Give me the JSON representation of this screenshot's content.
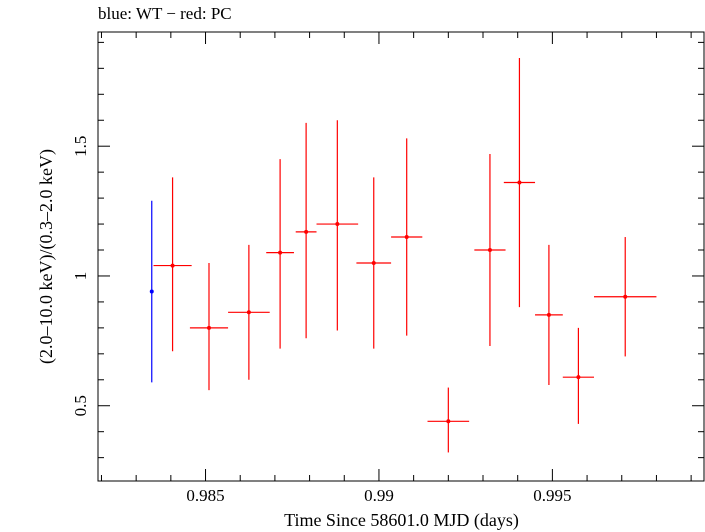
{
  "chart_data": {
    "type": "scatter",
    "title": "blue: WT − red: PC",
    "xlabel": "Time Since 58601.0 MJD (days)",
    "ylabel": "(2.0–10.0 keV)/(0.3–2.0 keV)",
    "xlim": [
      0.9819,
      0.9994
    ],
    "ylim": [
      0.21,
      1.94
    ],
    "xticks": [
      0.985,
      0.99,
      0.995
    ],
    "xtick_labels": [
      "0.985",
      "0.99",
      "0.995"
    ],
    "yticks": [
      0.5,
      1,
      1.5
    ],
    "ytick_labels": [
      "0.5",
      "1",
      "1.5"
    ],
    "grid": false,
    "series": [
      {
        "color": "#0000ff",
        "points": [
          {
            "x": 0.98345,
            "xerr": 0.0,
            "y": 0.94,
            "ylo": 0.59,
            "yhi": 1.29
          }
        ]
      },
      {
        "color": "#ff0000",
        "points": [
          {
            "x": 0.98405,
            "xerr": 0.00055,
            "y": 1.04,
            "ylo": 0.71,
            "yhi": 1.38
          },
          {
            "x": 0.9851,
            "xerr": 0.00055,
            "y": 0.8,
            "ylo": 0.56,
            "yhi": 1.05
          },
          {
            "x": 0.98625,
            "xerr": 0.0006,
            "y": 0.86,
            "ylo": 0.6,
            "yhi": 1.12
          },
          {
            "x": 0.98715,
            "xerr": 0.0004,
            "y": 1.09,
            "ylo": 0.72,
            "yhi": 1.45
          },
          {
            "x": 0.9879,
            "xerr": 0.0003,
            "y": 1.17,
            "ylo": 0.76,
            "yhi": 1.59
          },
          {
            "x": 0.9888,
            "xerr": 0.0006,
            "y": 1.2,
            "ylo": 0.79,
            "yhi": 1.6
          },
          {
            "x": 0.98985,
            "xerr": 0.0005,
            "y": 1.05,
            "ylo": 0.72,
            "yhi": 1.38
          },
          {
            "x": 0.9908,
            "xerr": 0.00045,
            "y": 1.15,
            "ylo": 0.77,
            "yhi": 1.53
          },
          {
            "x": 0.992,
            "xerr": 0.0006,
            "y": 0.44,
            "ylo": 0.32,
            "yhi": 0.57
          },
          {
            "x": 0.9932,
            "xerr": 0.00045,
            "y": 1.1,
            "ylo": 0.73,
            "yhi": 1.47
          },
          {
            "x": 0.99405,
            "xerr": 0.00045,
            "y": 1.36,
            "ylo": 0.88,
            "yhi": 1.84
          },
          {
            "x": 0.9949,
            "xerr": 0.0004,
            "y": 0.85,
            "ylo": 0.58,
            "yhi": 1.12
          },
          {
            "x": 0.99575,
            "xerr": 0.00045,
            "y": 0.61,
            "ylo": 0.43,
            "yhi": 0.8
          },
          {
            "x": 0.9971,
            "xerr": 0.0009,
            "y": 0.92,
            "ylo": 0.69,
            "yhi": 1.15
          }
        ]
      }
    ]
  }
}
